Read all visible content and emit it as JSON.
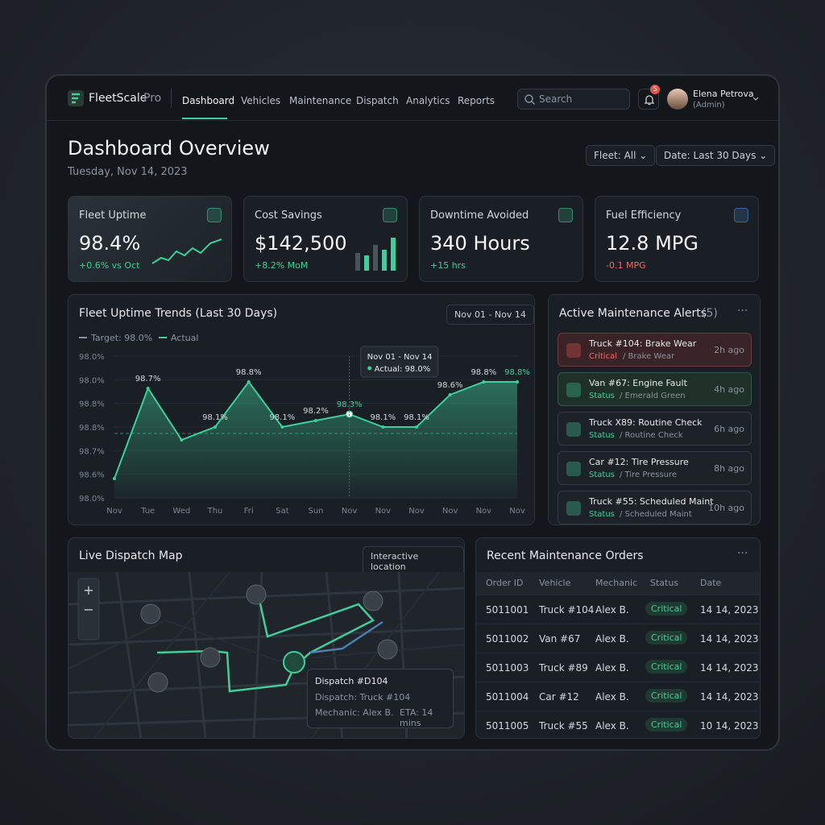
{
  "nav": {
    "logo": "FleetScale",
    "logo_suffix": "Pro",
    "items": [
      "Dashboard",
      "Vehicles",
      "Maintenance",
      "Dispatch",
      "Analytics",
      "Reports"
    ],
    "search": "Search",
    "badge": "5",
    "user_name": "Elena Petrova",
    "user_role": "(Admin)"
  },
  "header": {
    "title": "Dashboard Overview",
    "date": "Tuesday, Nov 14, 2023",
    "filters": [
      "Fleet: All",
      "Date: Last 30 Days"
    ]
  },
  "kpis": [
    {
      "label": "Fleet Uptime",
      "value": "98.4%",
      "delta": "+0.6% vs Oct"
    },
    {
      "label": "Cost Savings",
      "value": "$142,500",
      "delta": "+8.2% MoM"
    },
    {
      "label": "Downtime Avoided",
      "value": "340 Hours",
      "delta": "+15 hrs"
    },
    {
      "label": "Fuel Efficiency",
      "value": "12.8 MPG",
      "delta": "-0.1 MPG"
    }
  ],
  "trend_chart": {
    "type": "line",
    "title": "Fleet Uptime Trends (Last 30 Days)",
    "range": "Nov 01 - Nov 14",
    "legend": [
      "Target: 98.0%",
      "Actual"
    ],
    "target": 98.0,
    "categories": [
      "Nov",
      "Tue",
      "Wed",
      "Thu",
      "Fri",
      "Sat",
      "Sun",
      "Nov",
      "Nov",
      "Nov",
      "Nov",
      "Nov",
      "Nov"
    ],
    "values": [
      97.3,
      98.7,
      97.9,
      98.1,
      98.8,
      98.1,
      98.2,
      98.3,
      98.1,
      98.1,
      98.6,
      98.8,
      98.8
    ],
    "value_labels": [
      null,
      "98.7%",
      null,
      "98.1%",
      "98.8%",
      "98.1%",
      "98.2%",
      "98.3%",
      "98.1%",
      "98.1%",
      "98.6%",
      "98.8%",
      "98.8%"
    ],
    "y_axis_labels": [
      "98.0%",
      "98.0%",
      "98.8%",
      "98.8%",
      "98.7%",
      "98.6%",
      "98.0%"
    ],
    "ylim": [
      97.0,
      99.2
    ],
    "color": "#3ecf9a",
    "tooltip": {
      "title": "Nov 01 - Nov 14",
      "text": "Actual: 98.0%"
    }
  },
  "alerts": {
    "title": "Active Maintenance Alerts",
    "count": "(5)",
    "items": [
      {
        "title": "Truck #104: Brake Wear",
        "status": "Critical",
        "detail": "/ Brake Wear",
        "time": "2h ago"
      },
      {
        "title": "Van #67: Engine Fault",
        "status": "Status",
        "detail": "/ Emerald Green",
        "time": "4h ago"
      },
      {
        "title": "Truck X89: Routine Check",
        "status": "Status",
        "detail": "/ Routine Check",
        "time": "6h ago"
      },
      {
        "title": "Car #12: Tire Pressure",
        "status": "Status",
        "detail": "/ Tire Pressure",
        "time": "8h ago"
      },
      {
        "title": "Truck #55: Scheduled Maint",
        "status": "Status",
        "detail": "/ Scheduled Maint",
        "time": "10h ago"
      }
    ]
  },
  "map": {
    "title": "Live Dispatch Map",
    "button": "Interactive location",
    "popup": {
      "title": "Dispatch #D104",
      "vehicle": "Dispatch: Truck #104",
      "mechanic": "Mechanic: Alex B.",
      "eta": "ETA: 14 mins"
    }
  },
  "orders": {
    "title": "Recent Maintenance Orders",
    "columns": [
      "Order ID",
      "Vehicle",
      "Mechanic",
      "Status",
      "Date"
    ],
    "rows": [
      [
        "5011001",
        "Truck #104",
        "Alex B.",
        "Critical",
        "14 14, 2023"
      ],
      [
        "5011002",
        "Van #67",
        "Alex B.",
        "Critical",
        "14 14, 2023"
      ],
      [
        "5011003",
        "Truck #89",
        "Alex B.",
        "Critical",
        "14 14, 2023"
      ],
      [
        "5011004",
        "Car #12",
        "Alex B.",
        "Critical",
        "14 14, 2023"
      ],
      [
        "5011005",
        "Truck #55",
        "Alex B.",
        "Critical",
        "10 14, 2023"
      ]
    ]
  }
}
